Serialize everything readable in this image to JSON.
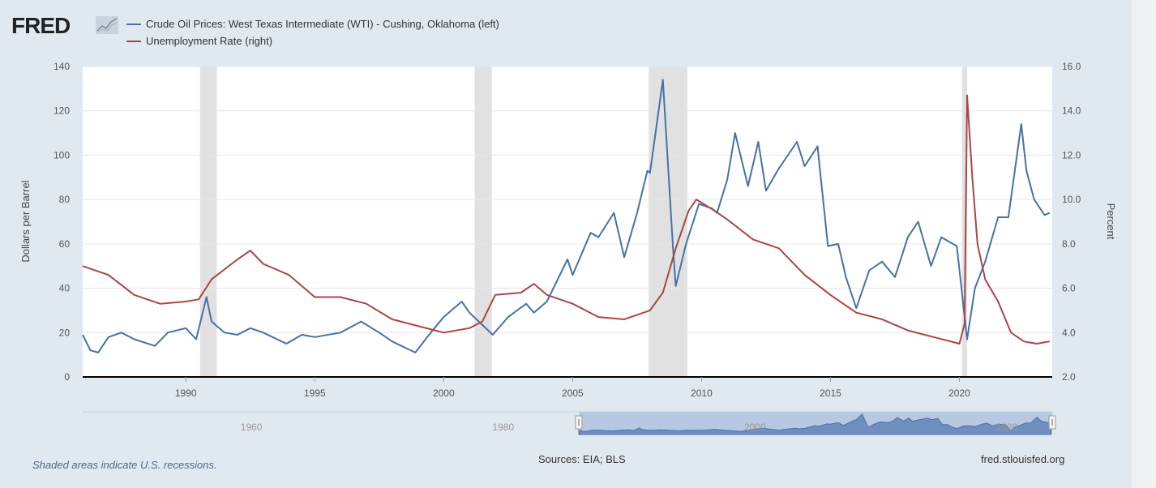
{
  "header": {
    "logo": "FRED"
  },
  "footer": {
    "note": "Shaded areas indicate U.S. recessions.",
    "sources": "Sources: EIA; BLS",
    "url": "fred.stlouisfed.org"
  },
  "colors": {
    "oil": "#4572a7",
    "unemployment": "#aa4643",
    "recession": "#e1e1e1",
    "background": "#e1e9f0",
    "navigator": "#6f8fbf"
  },
  "chart_data": {
    "type": "line",
    "xlim": [
      1986.0,
      2023.6
    ],
    "x_ticks": [
      1990,
      1995,
      2000,
      2005,
      2010,
      2015,
      2020
    ],
    "left_axis": {
      "label": "Dollars per Barrel",
      "ylim": [
        0,
        140
      ],
      "ticks": [
        "0",
        "20",
        "40",
        "60",
        "80",
        "100",
        "120",
        "140"
      ]
    },
    "right_axis": {
      "label": "Percent",
      "ylim": [
        2,
        16
      ],
      "ticks": [
        "2.0",
        "4.0",
        "6.0",
        "8.0",
        "10.0",
        "12.0",
        "14.0",
        "16.0"
      ]
    },
    "grid": true,
    "legend_placement": "top-left",
    "recessions": [
      [
        1990.55,
        1991.2
      ],
      [
        2001.2,
        2001.87
      ],
      [
        2007.95,
        2009.45
      ],
      [
        2020.1,
        2020.3
      ]
    ],
    "series": [
      {
        "name": "Crude Oil Prices: West Texas Intermediate (WTI) - Cushing, Oklahoma (left)",
        "axis": "left",
        "points": [
          [
            1986.0,
            19
          ],
          [
            1986.3,
            12
          ],
          [
            1986.6,
            11
          ],
          [
            1987.0,
            18
          ],
          [
            1987.5,
            20
          ],
          [
            1988.0,
            17
          ],
          [
            1988.8,
            14
          ],
          [
            1989.3,
            20
          ],
          [
            1990.0,
            22
          ],
          [
            1990.4,
            17
          ],
          [
            1990.8,
            36
          ],
          [
            1991.0,
            25
          ],
          [
            1991.5,
            20
          ],
          [
            1992.0,
            19
          ],
          [
            1992.5,
            22
          ],
          [
            1993.0,
            20
          ],
          [
            1993.9,
            15
          ],
          [
            1994.5,
            19
          ],
          [
            1995.0,
            18
          ],
          [
            1996.0,
            20
          ],
          [
            1996.8,
            25
          ],
          [
            1997.5,
            20
          ],
          [
            1998.0,
            16
          ],
          [
            1998.9,
            11
          ],
          [
            1999.5,
            20
          ],
          [
            2000.0,
            27
          ],
          [
            2000.7,
            34
          ],
          [
            2001.0,
            29
          ],
          [
            2001.9,
            19
          ],
          [
            2002.5,
            27
          ],
          [
            2003.2,
            33
          ],
          [
            2003.5,
            29
          ],
          [
            2004.0,
            34
          ],
          [
            2004.8,
            53
          ],
          [
            2005.0,
            46
          ],
          [
            2005.7,
            65
          ],
          [
            2006.0,
            63
          ],
          [
            2006.6,
            74
          ],
          [
            2007.0,
            54
          ],
          [
            2007.5,
            74
          ],
          [
            2007.9,
            93
          ],
          [
            2008.0,
            92
          ],
          [
            2008.5,
            134
          ],
          [
            2008.9,
            57
          ],
          [
            2009.0,
            41
          ],
          [
            2009.4,
            60
          ],
          [
            2009.9,
            78
          ],
          [
            2010.4,
            76
          ],
          [
            2010.6,
            74
          ],
          [
            2011.0,
            89
          ],
          [
            2011.3,
            110
          ],
          [
            2011.8,
            86
          ],
          [
            2012.2,
            106
          ],
          [
            2012.5,
            84
          ],
          [
            2013.0,
            94
          ],
          [
            2013.7,
            106
          ],
          [
            2014.0,
            95
          ],
          [
            2014.5,
            104
          ],
          [
            2014.9,
            59
          ],
          [
            2015.3,
            60
          ],
          [
            2015.6,
            45
          ],
          [
            2016.0,
            31
          ],
          [
            2016.5,
            48
          ],
          [
            2017.0,
            52
          ],
          [
            2017.5,
            45
          ],
          [
            2018.0,
            63
          ],
          [
            2018.4,
            70
          ],
          [
            2018.9,
            50
          ],
          [
            2019.3,
            63
          ],
          [
            2019.9,
            59
          ],
          [
            2020.3,
            17
          ],
          [
            2020.6,
            40
          ],
          [
            2021.0,
            52
          ],
          [
            2021.5,
            72
          ],
          [
            2021.9,
            72
          ],
          [
            2022.4,
            114
          ],
          [
            2022.6,
            93
          ],
          [
            2022.9,
            80
          ],
          [
            2023.3,
            73
          ],
          [
            2023.5,
            74
          ]
        ]
      },
      {
        "name": "Unemployment Rate (right)",
        "axis": "right",
        "points": [
          [
            1986.0,
            7.0
          ],
          [
            1987.0,
            6.6
          ],
          [
            1988.0,
            5.7
          ],
          [
            1989.0,
            5.3
          ],
          [
            1990.0,
            5.4
          ],
          [
            1990.5,
            5.5
          ],
          [
            1991.0,
            6.4
          ],
          [
            1992.0,
            7.3
          ],
          [
            1992.5,
            7.7
          ],
          [
            1993.0,
            7.1
          ],
          [
            1994.0,
            6.6
          ],
          [
            1995.0,
            5.6
          ],
          [
            1996.0,
            5.6
          ],
          [
            1997.0,
            5.3
          ],
          [
            1998.0,
            4.6
          ],
          [
            1999.0,
            4.3
          ],
          [
            2000.0,
            4.0
          ],
          [
            2001.0,
            4.2
          ],
          [
            2001.5,
            4.5
          ],
          [
            2002.0,
            5.7
          ],
          [
            2003.0,
            5.8
          ],
          [
            2003.5,
            6.2
          ],
          [
            2004.0,
            5.7
          ],
          [
            2005.0,
            5.3
          ],
          [
            2006.0,
            4.7
          ],
          [
            2007.0,
            4.6
          ],
          [
            2008.0,
            5.0
          ],
          [
            2008.5,
            5.8
          ],
          [
            2009.0,
            7.8
          ],
          [
            2009.5,
            9.5
          ],
          [
            2009.8,
            10.0
          ],
          [
            2010.5,
            9.5
          ],
          [
            2011.0,
            9.1
          ],
          [
            2012.0,
            8.2
          ],
          [
            2013.0,
            7.8
          ],
          [
            2014.0,
            6.6
          ],
          [
            2015.0,
            5.7
          ],
          [
            2016.0,
            4.9
          ],
          [
            2017.0,
            4.6
          ],
          [
            2018.0,
            4.1
          ],
          [
            2019.0,
            3.8
          ],
          [
            2020.0,
            3.5
          ],
          [
            2020.2,
            4.4
          ],
          [
            2020.3,
            14.7
          ],
          [
            2020.5,
            11.0
          ],
          [
            2020.7,
            8.0
          ],
          [
            2021.0,
            6.4
          ],
          [
            2021.5,
            5.4
          ],
          [
            2022.0,
            4.0
          ],
          [
            2022.5,
            3.6
          ],
          [
            2023.0,
            3.5
          ],
          [
            2023.5,
            3.6
          ]
        ]
      }
    ],
    "navigator": {
      "xlim": [
        1946.6,
        2023.6
      ],
      "ticks": [
        "1960",
        "1980",
        "2000",
        "2020"
      ],
      "window": [
        1986.0,
        2023.6
      ]
    }
  }
}
